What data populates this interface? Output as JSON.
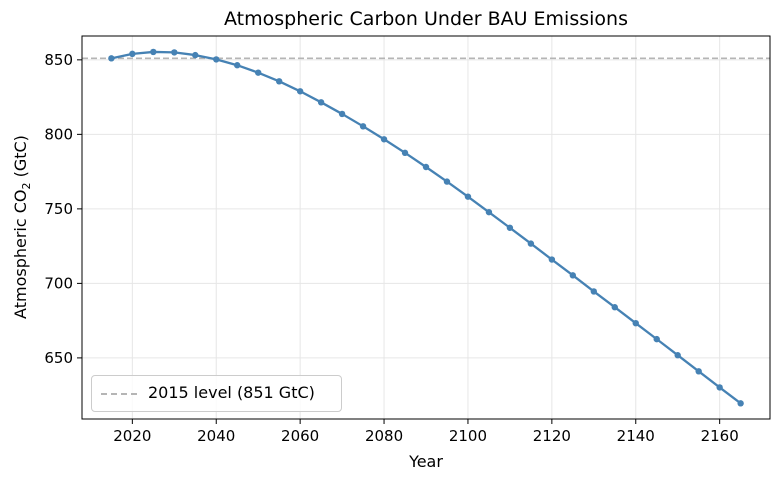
{
  "chart_data": {
    "type": "line",
    "title": "Atmospheric Carbon Under BAU Emissions",
    "xlabel": "Year",
    "ylabel_main": "Atmospheric CO",
    "ylabel_sub": "2",
    "ylabel_unit": " (GtC)",
    "xlim": [
      2008,
      2172
    ],
    "ylim": [
      609,
      866
    ],
    "xticks": [
      2020,
      2040,
      2060,
      2080,
      2100,
      2120,
      2140,
      2160
    ],
    "yticks": [
      650,
      700,
      750,
      800,
      850
    ],
    "grid": true,
    "series": [
      {
        "color": "#4682b4",
        "x": [
          2015,
          2020,
          2025,
          2030,
          2035,
          2040,
          2045,
          2050,
          2055,
          2060,
          2065,
          2070,
          2075,
          2080,
          2085,
          2090,
          2095,
          2100,
          2105,
          2110,
          2115,
          2120,
          2125,
          2130,
          2135,
          2140,
          2145,
          2150,
          2155,
          2160,
          2165
        ],
        "y": [
          851.0,
          854.0,
          855.3,
          855.0,
          853.2,
          850.3,
          846.4,
          841.4,
          835.6,
          828.9,
          821.5,
          813.7,
          805.4,
          796.7,
          787.6,
          778.1,
          768.3,
          758.2,
          747.8,
          737.3,
          726.7,
          716.0,
          705.4,
          694.6,
          684.0,
          673.3,
          662.6,
          651.8,
          641.0,
          630.2,
          619.5
        ]
      }
    ],
    "reference_line": {
      "y": 851,
      "color": "#b5b5b5",
      "label": "2015 level (851 GtC)"
    },
    "legend_placement": "lower-left"
  }
}
